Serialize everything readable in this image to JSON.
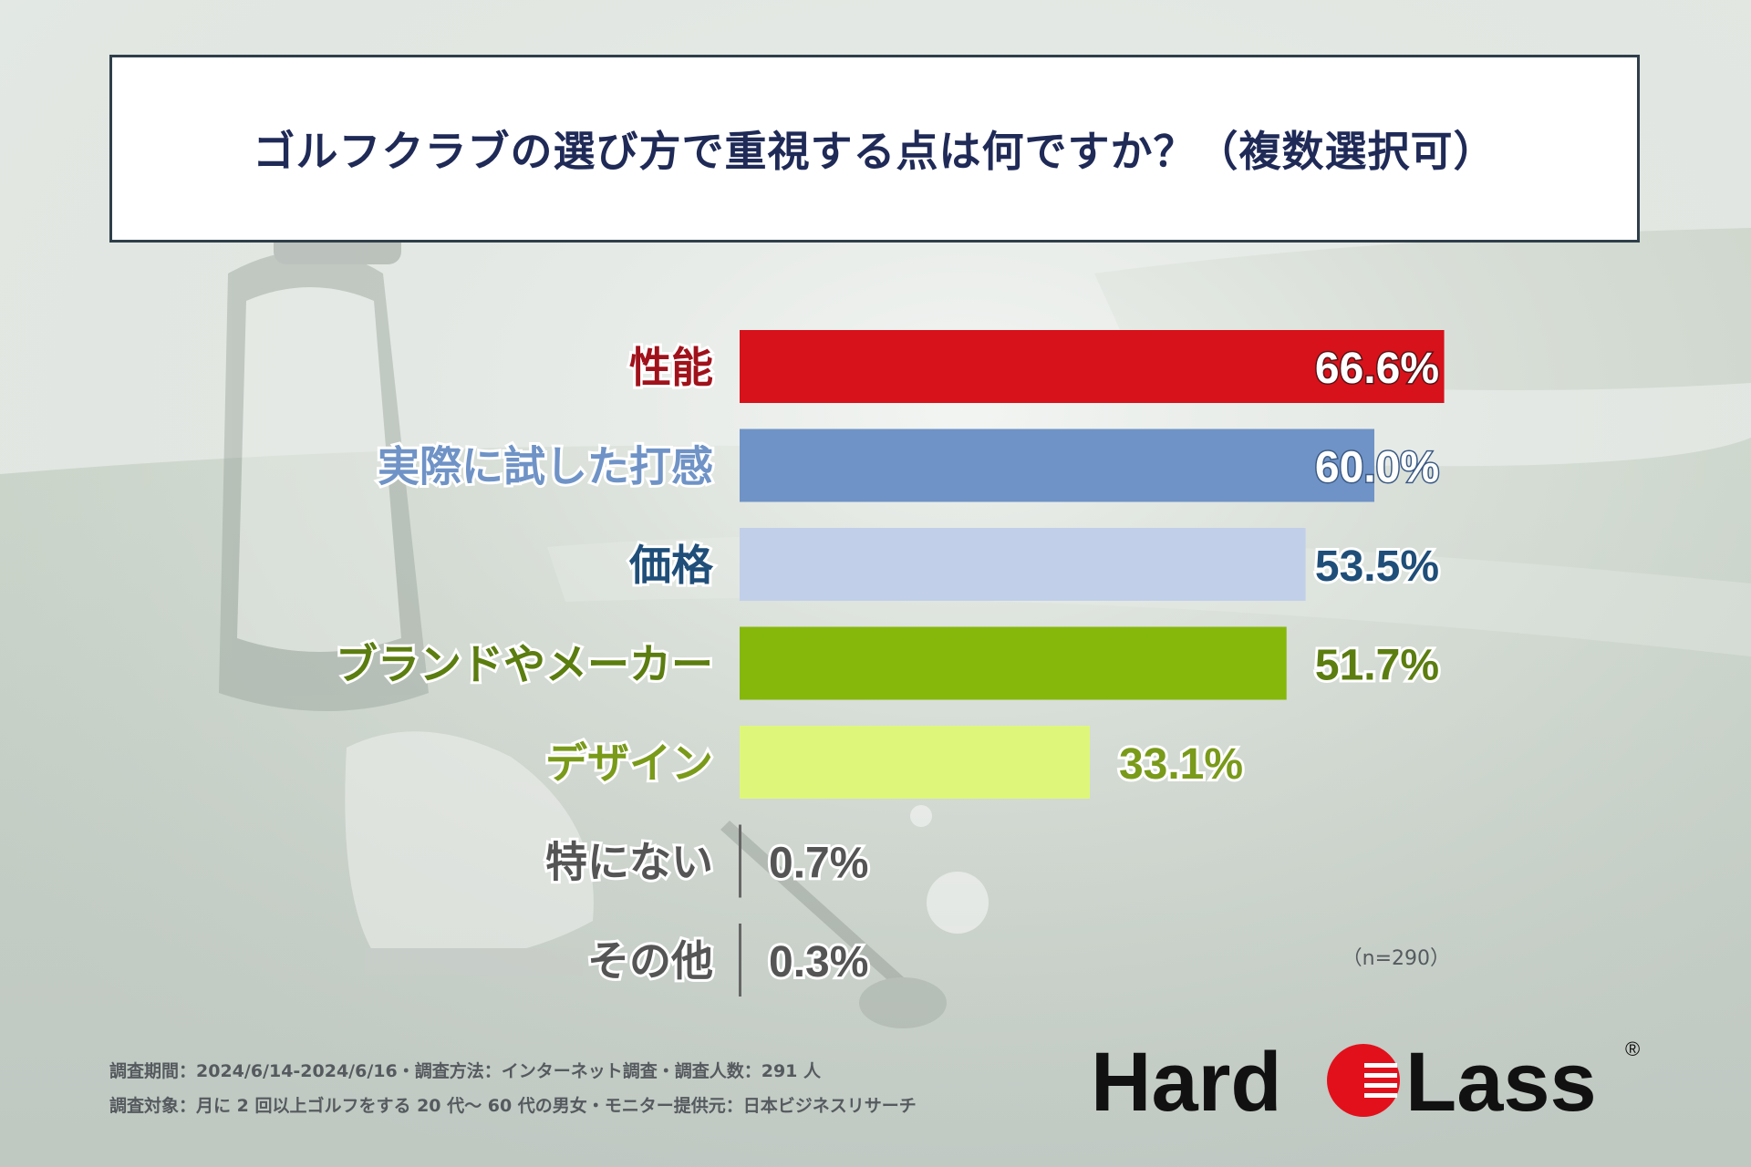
{
  "title": "ゴルフクラブの選び方で重視する点は何ですか？（複数選択可）",
  "chart_data": {
    "type": "bar",
    "orientation": "horizontal",
    "title": "ゴルフクラブの選び方で重視する点は何ですか？（複数選択可）",
    "categories": [
      "性能",
      "実際に試した打感",
      "価格",
      "ブランドやメーカー",
      "デザイン",
      "特にない",
      "その他"
    ],
    "values": [
      66.6,
      60.0,
      53.5,
      51.7,
      33.1,
      0.7,
      0.3
    ],
    "value_labels": [
      "66.6%",
      "60.0%",
      "53.5%",
      "51.7%",
      "33.1%",
      "0.7%",
      "0.3%"
    ],
    "bar_colors": [
      "#d7121b",
      "#6f93c6",
      "#c1cfe9",
      "#86b80b",
      "#def77a",
      "#666666",
      "#666666"
    ],
    "label_colors": [
      "#a0121b",
      "#6f93c6",
      "#1f4e79",
      "#5c7d10",
      "#7a9a1a",
      "#555555",
      "#555555"
    ],
    "value_label_colors": [
      "#ffffff",
      "#ffffff",
      "#1f4e79",
      "#5c7d10",
      "#7a9a1a",
      "#555555",
      "#555555"
    ],
    "xlim": [
      0,
      100
    ],
    "sample_size": "（n=290）"
  },
  "footnotes": [
    "調査期間：2024/6/14-2024/6/16・調査方法：インターネット調査・調査人数：291 人",
    "調査対象：月に 2 回以上ゴルフをする 20 代〜 60 代の男女・モニター提供元：日本ビジネスリサーチ"
  ],
  "logo": {
    "left": "Hard",
    "right": "Lass",
    "mark": "®"
  }
}
